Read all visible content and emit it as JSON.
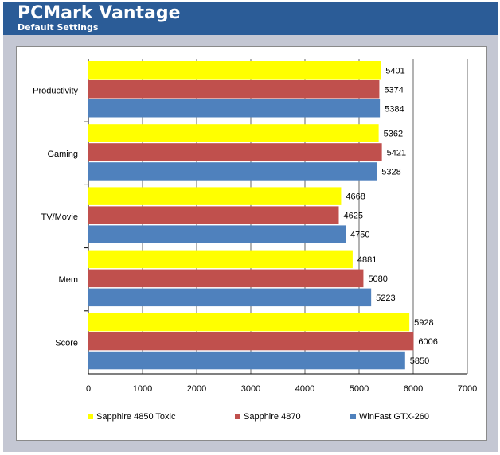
{
  "header": {
    "title": "PCMark Vantage",
    "subtitle": "Default Settings"
  },
  "colors": {
    "header_bg": "#2b5c97",
    "chart_bg": "#c4c7d3",
    "grid": "#000000"
  },
  "chart_data": {
    "type": "bar",
    "orientation": "horizontal",
    "categories": [
      "Productivity",
      "Gaming",
      "TV/Movie",
      "Mem",
      "Score"
    ],
    "series": [
      {
        "name": "Sapphire 4850 Toxic",
        "color": "#ffff00",
        "values": [
          5401,
          5362,
          4668,
          4881,
          5928
        ]
      },
      {
        "name": "Sapphire 4870",
        "color": "#c0504d",
        "values": [
          5374,
          5421,
          4625,
          5080,
          6006
        ]
      },
      {
        "name": "WinFast GTX-260",
        "color": "#4f81bd",
        "values": [
          5384,
          5328,
          4750,
          5223,
          5850
        ]
      }
    ],
    "xlim": [
      0,
      7000
    ],
    "xticks": [
      0,
      1000,
      2000,
      3000,
      4000,
      5000,
      6000,
      7000
    ],
    "grid": true,
    "legend_position": "bottom"
  }
}
